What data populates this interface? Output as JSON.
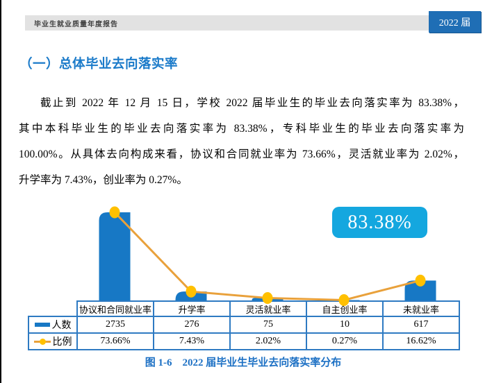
{
  "header": {
    "report_title": "毕业生就业质量年度报告",
    "cohort_badge": "2022 届"
  },
  "doc": {
    "section_title": "（一）总体毕业去向落实率",
    "paragraph_lines": [
      "截止到 2022 年 12 月 15 日，学校 2022 届毕业生的毕业去向落实率为 83.38%，",
      "其中本科毕业生的毕业去向落实率为 83.38%，专科毕业生的毕业去向落实率为",
      "100.00%。从具体去向构成来看，协议和合同就业率为 73.66%，灵活就业率为 2.02%，",
      "升学率为 7.43%，创业率为 0.27%。"
    ],
    "figure_caption": "图 1-6　2022 届毕业生毕业去向落实率分布"
  },
  "chart_data": {
    "type": "bar",
    "subtype": "combo-bar-line",
    "categories": [
      "协议和合同就业率",
      "升学率",
      "灵活就业率",
      "自主创业率",
      "未就业率"
    ],
    "series": [
      {
        "name": "人数",
        "type": "bar",
        "values": [
          2735,
          276,
          75,
          10,
          617
        ],
        "color": "#1778c5"
      },
      {
        "name": "比例",
        "type": "line",
        "values": [
          73.66,
          7.43,
          2.02,
          0.27,
          16.62
        ],
        "unit": "%",
        "color": "#e9a13b",
        "marker_color": "#ffc000"
      }
    ],
    "callout_label": "83.38%",
    "title": "2022 届毕业生毕业去向落实率分布",
    "xlabel": "",
    "ylabel": "",
    "ylim_counts": [
      0,
      3100
    ],
    "ylim_percent": [
      0,
      84
    ],
    "grid": false,
    "legend_position": "table-left-column",
    "axis_labels_shown_as": "table"
  },
  "table": {
    "columns": [
      "协议和合同就业率",
      "升学率",
      "灵活就业率",
      "自主创业率",
      "未就业率"
    ],
    "rows": [
      {
        "label": "人数",
        "values": [
          "2735",
          "276",
          "75",
          "10",
          "617"
        ]
      },
      {
        "label": "比例",
        "values": [
          "73.66%",
          "7.43%",
          "2.02%",
          "0.27%",
          "16.62%"
        ]
      }
    ]
  },
  "colors": {
    "bar-blue": "#1778c5",
    "line-orange": "#e9a13b",
    "marker-yellow": "#ffc000",
    "table-border": "#2e7ac2",
    "badge-cyan": "#14a7df",
    "heading-blue": "#1a7ac9",
    "caption-blue": "#1c70c4",
    "header-box-blue": "#1f6eb5",
    "header-bar-gray": "#e2e2e2"
  }
}
